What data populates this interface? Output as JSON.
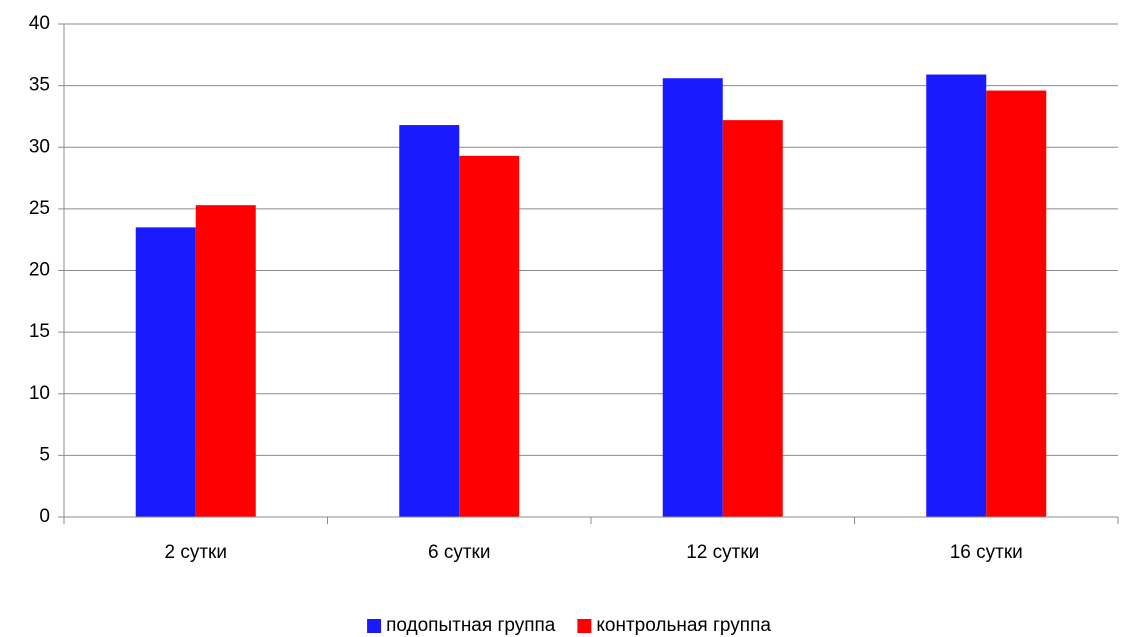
{
  "chart_data": {
    "type": "bar",
    "title": "",
    "xlabel": "",
    "ylabel": "",
    "categories": [
      "2 сутки",
      "6 сутки",
      "12 сутки",
      "16 сутки"
    ],
    "series": [
      {
        "name": "подопытная группа",
        "color": "#1a1aff",
        "values": [
          23.5,
          31.8,
          35.6,
          35.9
        ]
      },
      {
        "name": "контрольная группа",
        "color": "#ff0000",
        "values": [
          25.3,
          29.3,
          32.2,
          34.6
        ]
      }
    ],
    "ylim": [
      0,
      40
    ],
    "yticks": [
      "0",
      "5",
      "10",
      "15",
      "20",
      "25",
      "30",
      "35",
      "40"
    ],
    "grid": true,
    "legend_position": "bottom-center"
  }
}
